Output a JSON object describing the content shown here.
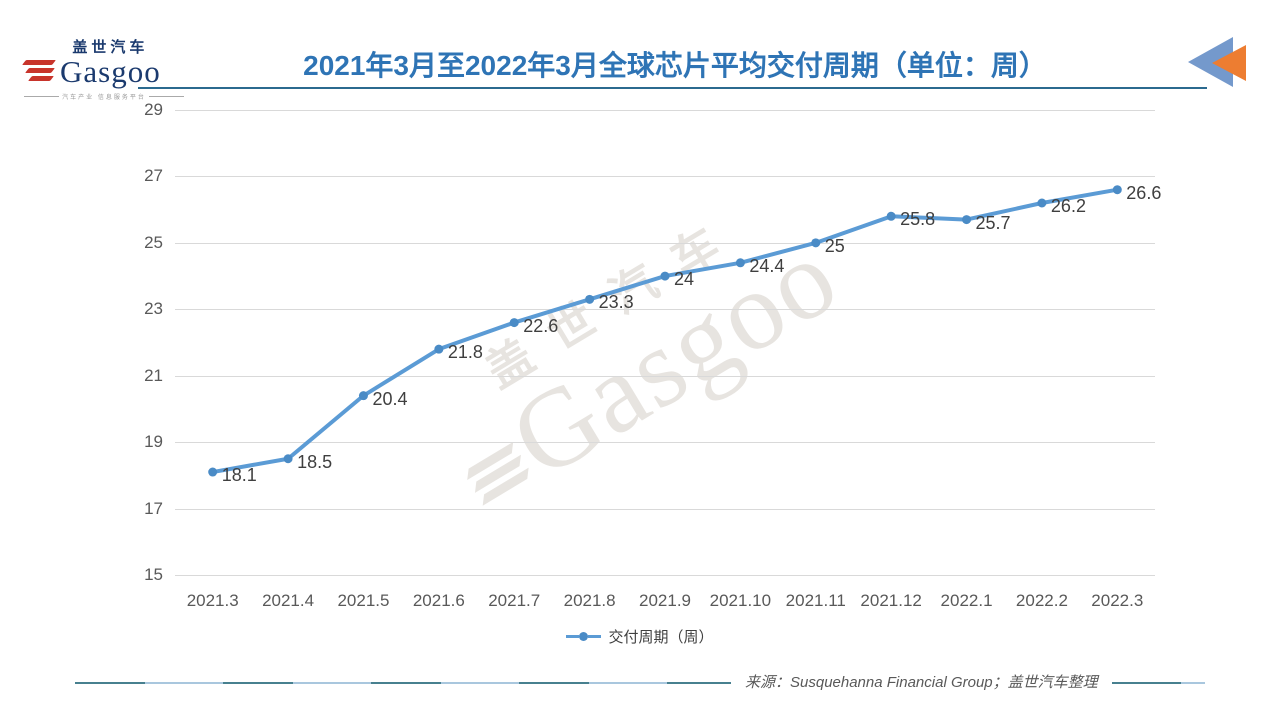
{
  "logo": {
    "cn": "盖世汽车",
    "en": "Gasgoo",
    "tagline": "汽车产业 信息服务平台"
  },
  "header": {
    "title": "2021年3月至2022年3月全球芯片平均交付周期（单位：周）"
  },
  "chart_data": {
    "type": "line",
    "title": "2021年3月至2022年3月全球芯片平均交付周期（单位：周）",
    "categories": [
      "2021.3",
      "2021.4",
      "2021.5",
      "2021.6",
      "2021.7",
      "2021.8",
      "2021.9",
      "2021.10",
      "2021.11",
      "2021.12",
      "2022.1",
      "2022.2",
      "2022.3"
    ],
    "series": [
      {
        "name": "交付周期（周）",
        "color": "#5B9BD5",
        "values": [
          18.1,
          18.5,
          20.4,
          21.8,
          22.6,
          23.3,
          24,
          24.4,
          25,
          25.8,
          25.7,
          26.2,
          26.6
        ]
      }
    ],
    "xlabel": "",
    "ylabel": "",
    "ylim": [
      15,
      29
    ],
    "ytick_step": 2,
    "grid": true,
    "legend_position": "bottom",
    "data_labels": true
  },
  "legend": {
    "label": "交付周期（周）"
  },
  "footer": {
    "source": "来源：Susquehanna Financial Group；盖世汽车整理"
  },
  "watermark": {
    "cn": "盖世汽车",
    "en": "Gasgoo"
  },
  "colors": {
    "line": "#5B9BD5",
    "marker": "#4A8BC6",
    "title": "#2E74B5",
    "underline": "#2B6A8F",
    "grid": "#D9D9D9",
    "axis_text": "#595959",
    "data_label": "#3F3F3F",
    "logo_navy": "#1B3A6E",
    "logo_red": "#C8342B",
    "arrow_blue": "#7499CC",
    "arrow_orange": "#ED7D31"
  }
}
